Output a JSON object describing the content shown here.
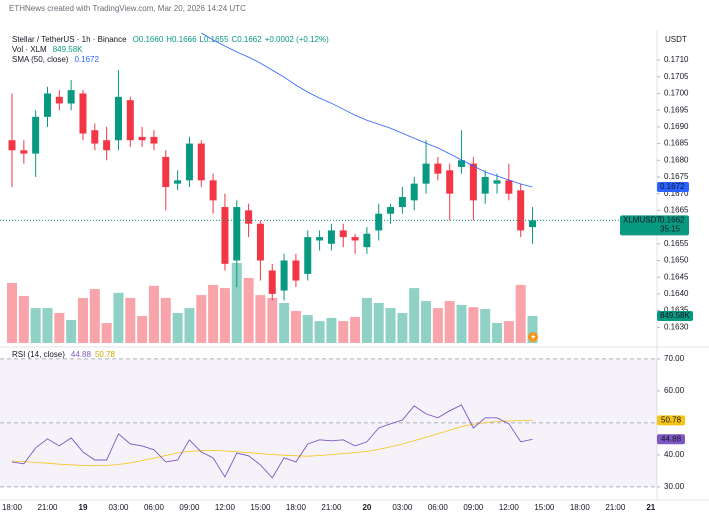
{
  "header": "ETHNews created with TradingView.com, Mar 20, 2026 14:24 UTC",
  "chart_data": [
    {
      "type": "candlestick",
      "title": "Stellar / TetherUS · 1h · Binance",
      "ohlc_legend": [
        "O0.1660",
        "H0.1666",
        "L0.1655",
        "C0.1662"
      ],
      "change": "+0.0002 (+0.12%)",
      "currency": "USDT",
      "symbol": "XLMUSDT",
      "countdown": "35:15",
      "colors": {
        "up": "#089981",
        "down": "#f23645"
      },
      "open": [
        0.1686,
        0.1683,
        0.1682,
        0.1693,
        0.1699,
        0.1697,
        0.17,
        0.1689,
        0.1686,
        0.1686,
        0.1698,
        0.1687,
        0.1687,
        0.1681,
        0.1673,
        0.1674,
        0.1685,
        0.1674,
        0.1666,
        0.165,
        0.1665,
        0.1661,
        0.1647,
        0.1641,
        0.165,
        0.1646,
        0.1656,
        0.1655,
        0.1659,
        0.1657,
        0.1654,
        0.1659,
        0.1664,
        0.1666,
        0.1668,
        0.1673,
        0.1679,
        0.1677,
        0.1678,
        0.1679,
        0.167,
        0.1673,
        0.1674,
        0.1671,
        0.166
      ],
      "high": [
        0.17,
        0.1686,
        0.1695,
        0.1702,
        0.1701,
        0.1704,
        0.1701,
        0.1691,
        0.169,
        0.1707,
        0.1699,
        0.169,
        0.1689,
        0.1683,
        0.1677,
        0.1687,
        0.1686,
        0.1676,
        0.167,
        0.1668,
        0.1667,
        0.1662,
        0.1649,
        0.1652,
        0.1652,
        0.1659,
        0.1659,
        0.1661,
        0.1661,
        0.1658,
        0.166,
        0.1667,
        0.1667,
        0.1672,
        0.1675,
        0.1686,
        0.1681,
        0.1679,
        0.1689,
        0.1681,
        0.1677,
        0.1676,
        0.1679,
        0.1673,
        0.1666
      ],
      "low": [
        0.1672,
        0.1679,
        0.1675,
        0.169,
        0.1695,
        0.1695,
        0.1686,
        0.1683,
        0.168,
        0.1683,
        0.1684,
        0.1684,
        0.1683,
        0.1665,
        0.1671,
        0.1672,
        0.1672,
        0.1664,
        0.1647,
        0.1642,
        0.1657,
        0.1644,
        0.1638,
        0.1638,
        0.1642,
        0.1644,
        0.1653,
        0.1653,
        0.1654,
        0.1652,
        0.1652,
        0.1656,
        0.1661,
        0.1664,
        0.1665,
        0.167,
        0.1674,
        0.1662,
        0.1676,
        0.1662,
        0.1667,
        0.167,
        0.1668,
        0.1657,
        0.1655
      ],
      "close": [
        0.1683,
        0.1682,
        0.1693,
        0.17,
        0.1697,
        0.1701,
        0.1688,
        0.1685,
        0.1683,
        0.1699,
        0.1686,
        0.1686,
        0.1685,
        0.1672,
        0.1674,
        0.1685,
        0.1674,
        0.1668,
        0.1649,
        0.1666,
        0.1661,
        0.165,
        0.164,
        0.165,
        0.1644,
        0.1657,
        0.1657,
        0.1659,
        0.1657,
        0.1656,
        0.1658,
        0.1664,
        0.1666,
        0.1669,
        0.1673,
        0.1679,
        0.1676,
        0.167,
        0.168,
        0.1668,
        0.1675,
        0.1674,
        0.167,
        0.1659,
        0.1662
      ],
      "series": [
        {
          "name": "SMA (50, close)",
          "color": "#2962ff",
          "values": [
            null,
            null,
            null,
            null,
            null,
            null,
            null,
            null,
            null,
            null,
            null,
            null,
            null,
            null,
            null,
            null,
            0.17181,
            0.1716,
            0.17142,
            0.17124,
            0.17109,
            0.17091,
            0.1707,
            0.17049,
            0.17025,
            0.17004,
            0.16986,
            0.16971,
            0.16953,
            0.16935,
            0.1692,
            0.16908,
            0.16896,
            0.16881,
            0.16866,
            0.16851,
            0.16837,
            0.16819,
            0.16801,
            0.16783,
            0.16765,
            0.16753,
            0.16741,
            0.16729,
            0.1672
          ]
        }
      ],
      "volume": {
        "name": "Vol · XLM",
        "values": [
          1890000,
          1480000,
          1100000,
          1100000,
          945000,
          725000,
          1420000,
          1700000,
          630000,
          1580000,
          1420000,
          850000,
          1800000,
          1420000,
          945000,
          1100000,
          1510000,
          1830000,
          1730000,
          2520000,
          2050000,
          1510000,
          1420000,
          1260000,
          1010000,
          880000,
          690000,
          790000,
          690000,
          820000,
          1420000,
          1260000,
          1100000,
          945000,
          1730000,
          1320000,
          1100000,
          1320000,
          1200000,
          1130000,
          1070000,
          630000,
          690000,
          1830000,
          849580
        ],
        "value_labels": [
          null,
          null,
          null,
          null,
          null,
          null,
          null,
          null,
          null,
          null,
          null,
          null,
          null,
          null,
          null,
          null,
          null,
          null,
          null,
          null,
          null,
          null,
          null,
          null,
          null,
          null,
          null,
          null,
          null,
          null,
          null,
          null,
          null,
          null,
          null,
          null,
          null,
          null,
          null,
          null,
          null,
          null,
          null,
          null,
          "849.58K"
        ]
      },
      "ylim": [
        0.16247,
        0.1719
      ],
      "yticks": [
        {
          "value": 0.163,
          "label": "0.1630"
        },
        {
          "value": 0.1635,
          "label": "0.1635"
        },
        {
          "value": 0.164,
          "label": "0.1640"
        },
        {
          "value": 0.1645,
          "label": "0.1645"
        },
        {
          "value": 0.165,
          "label": "0.1650"
        },
        {
          "value": 0.1655,
          "label": "0.1655"
        },
        {
          "value": 0.166,
          "label": "0.1660"
        },
        {
          "value": 0.1665,
          "label": "0.1665"
        },
        {
          "value": 0.167,
          "label": "0.1670"
        },
        {
          "value": 0.1675,
          "label": "0.1675"
        },
        {
          "value": 0.168,
          "label": "0.1680"
        },
        {
          "value": 0.1685,
          "label": "0.1685"
        },
        {
          "value": 0.169,
          "label": "0.1690"
        },
        {
          "value": 0.1695,
          "label": "0.1695"
        },
        {
          "value": 0.17,
          "label": "0.1700"
        },
        {
          "value": 0.1705,
          "label": "0.1705"
        },
        {
          "value": 0.171,
          "label": "0.1710"
        }
      ],
      "xticks": [
        "18:00",
        "21:00",
        "19",
        "03:00",
        "06:00",
        "09:00",
        "12:00",
        "15:00",
        "18:00",
        "21:00",
        "20",
        "03:00",
        "06:00",
        "09:00",
        "12:00",
        "15:00",
        "18:00",
        "21:00",
        "21"
      ]
    },
    {
      "type": "line",
      "title": "RSI (14, close)",
      "series": [
        {
          "color": "#7e57c2",
          "values": [
            37.8,
            37.2,
            42.2,
            45,
            42.8,
            45.3,
            40.9,
            38.4,
            38.4,
            46.6,
            43.4,
            42.8,
            41.6,
            37.8,
            38.4,
            44.7,
            40.9,
            39.1,
            33.1,
            40.6,
            39.7,
            36.9,
            32.8,
            39.1,
            37.8,
            43.4,
            44.7,
            44.4,
            44.7,
            42.8,
            44.1,
            48.4,
            49.7,
            50.9,
            55.3,
            52.8,
            51.6,
            53.8,
            55.6,
            48.4,
            51.6,
            51.6,
            49.7,
            44.1,
            44.88
          ]
        },
        {
          "color": "#f5c518",
          "values": [
            38.1,
            37.9,
            37.6,
            37.4,
            37.1,
            36.9,
            36.7,
            36.6,
            36.7,
            37,
            37.5,
            38.2,
            39,
            39.8,
            40.6,
            41.1,
            41.3,
            41.4,
            41.2,
            41,
            40.7,
            40.4,
            40.1,
            39.9,
            39.7,
            39.6,
            39.8,
            40.1,
            40.4,
            40.7,
            41.1,
            41.7,
            42.5,
            43.4,
            44.4,
            45.5,
            46.6,
            47.7,
            48.8,
            49.6,
            50.1,
            50.4,
            50.6,
            50.7,
            50.78
          ]
        }
      ],
      "levels": [
        70,
        50,
        30
      ],
      "band_color": "#7e57c2",
      "ylim": [
        25.9,
        73.4
      ],
      "yticks": [
        {
          "value": 70,
          "label": "70.00"
        },
        {
          "value": 60,
          "label": "60.00"
        },
        {
          "value": 40,
          "label": "40.00"
        },
        {
          "value": 30,
          "label": "30.00"
        }
      ]
    }
  ]
}
